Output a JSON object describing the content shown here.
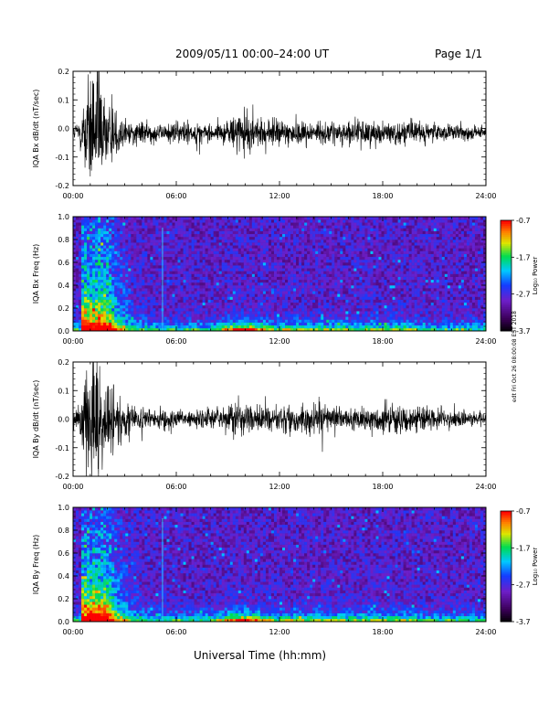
{
  "header": {
    "title": "2009/05/11  00:00–24:00 UT",
    "page": "Page 1/1"
  },
  "footer": {
    "xlabel": "Universal Time (hh:mm)",
    "stamp": "edt Fri Oct 26 08:00:08 EST 2018"
  },
  "colorbar": {
    "ticks": [
      "-0.7",
      "-1.7",
      "-2.7",
      "-3.7"
    ],
    "label": "Log₁₀ Power",
    "range": [
      -3.7,
      -0.7
    ]
  },
  "chart_data": [
    {
      "type": "line",
      "title": "",
      "ylabel": "IQA Bx dB/dt (nT/sec)",
      "xticks": [
        "00:00",
        "06:00",
        "12:00",
        "18:00",
        "24:00"
      ],
      "xlim": [
        0,
        24
      ],
      "ylim": [
        -0.2,
        0.2
      ],
      "yticks": [
        "0.2",
        "0.1",
        "0.0",
        "-0.1",
        "-0.2"
      ],
      "series": [
        {
          "x": [
            0,
            0.5,
            1,
            1.5,
            2,
            3,
            4,
            5,
            6,
            7,
            8,
            9,
            9.5,
            10,
            11,
            12,
            13,
            14,
            15,
            16,
            17,
            18,
            19,
            20,
            21,
            22,
            23,
            24
          ],
          "envelope": [
            0.02,
            0.08,
            0.25,
            0.25,
            0.12,
            0.05,
            0.04,
            0.035,
            0.04,
            0.04,
            0.03,
            0.04,
            0.08,
            0.07,
            0.05,
            0.05,
            0.05,
            0.04,
            0.04,
            0.04,
            0.05,
            0.04,
            0.04,
            0.04,
            0.03,
            0.03,
            0.03,
            0.02
          ],
          "offset": -0.015
        }
      ]
    },
    {
      "type": "heatmap",
      "title": "",
      "ylabel": "IQA Bx Freq (Hz)",
      "xticks": [
        "00:00",
        "06:00",
        "12:00",
        "18:00",
        "24:00"
      ],
      "xlim": [
        0,
        24
      ],
      "ylim": [
        0,
        1.0
      ],
      "yticks": [
        "1.0",
        "0.8",
        "0.6",
        "0.4",
        "0.2",
        "0.0"
      ],
      "zlim": [
        -3.7,
        -0.7
      ],
      "features": {
        "broadband_burst_hours": [
          0.5,
          2.0
        ],
        "spike_hour": 5.2
      }
    },
    {
      "type": "line",
      "title": "",
      "ylabel": "IQA By dB/dt (nT/sec)",
      "xticks": [
        "00:00",
        "06:00",
        "12:00",
        "18:00",
        "24:00"
      ],
      "xlim": [
        0,
        24
      ],
      "ylim": [
        -0.2,
        0.2
      ],
      "yticks": [
        "0.2",
        "0.1",
        "0.0",
        "-0.1",
        "-0.2"
      ],
      "series": [
        {
          "x": [
            0,
            0.5,
            1,
            1.5,
            2,
            3,
            4,
            5,
            6,
            7,
            8,
            9,
            9.5,
            10,
            11,
            12,
            13,
            14,
            15,
            16,
            17,
            18,
            19,
            20,
            21,
            22,
            23,
            24
          ],
          "envelope": [
            0.03,
            0.1,
            0.25,
            0.25,
            0.15,
            0.06,
            0.04,
            0.035,
            0.035,
            0.03,
            0.04,
            0.06,
            0.07,
            0.06,
            0.05,
            0.05,
            0.05,
            0.05,
            0.05,
            0.04,
            0.05,
            0.05,
            0.05,
            0.05,
            0.04,
            0.04,
            0.03,
            0.02
          ],
          "offset": 0.0
        }
      ]
    },
    {
      "type": "heatmap",
      "title": "",
      "ylabel": "IQA By Freq (Hz)",
      "xticks": [
        "00:00",
        "06:00",
        "12:00",
        "18:00",
        "24:00"
      ],
      "xlim": [
        0,
        24
      ],
      "ylim": [
        0,
        1.0
      ],
      "yticks": [
        "1.0",
        "0.8",
        "0.6",
        "0.4",
        "0.2",
        "0.0"
      ],
      "zlim": [
        -3.7,
        -0.7
      ],
      "features": {
        "broadband_burst_hours": [
          0.5,
          2.0
        ],
        "spike_hour": 5.2
      }
    }
  ]
}
